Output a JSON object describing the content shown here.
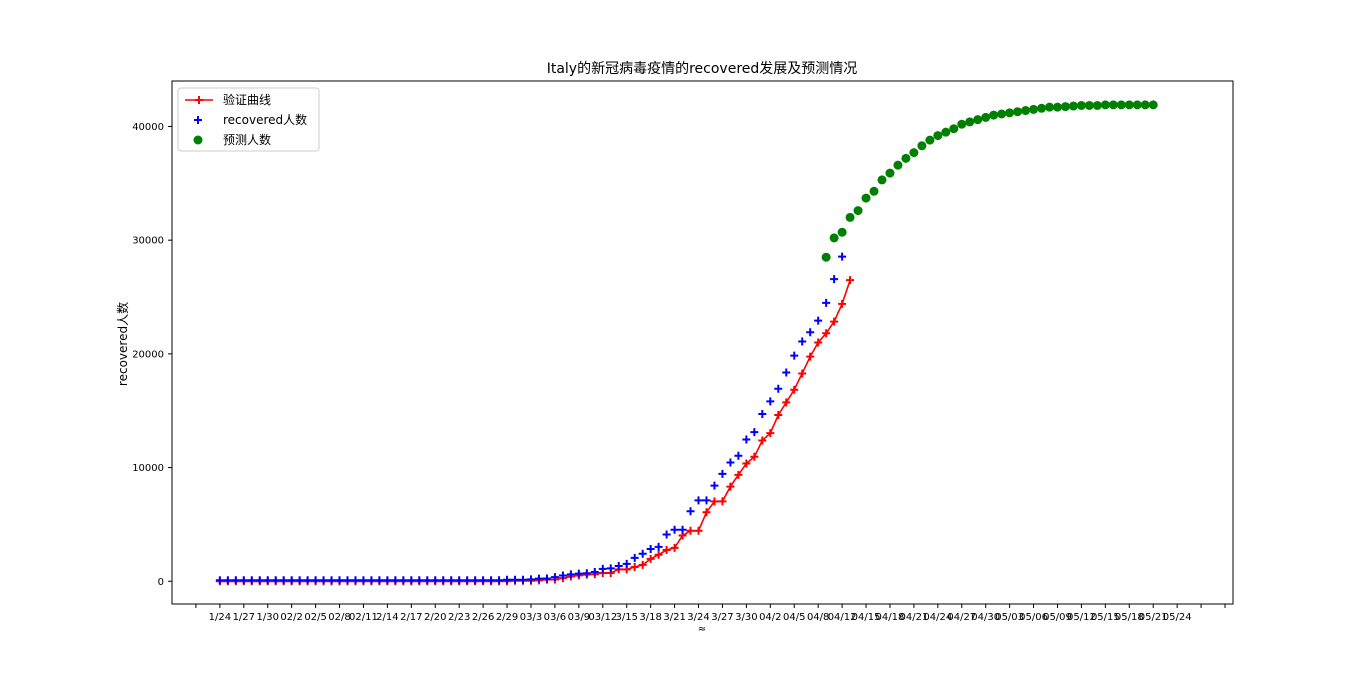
{
  "chart_data": {
    "type": "line",
    "title": "Italy的新冠病毒疫情的recovered发展及预测情况",
    "xlabel": "≈",
    "ylabel": "recovered人数",
    "ylim": [
      -2000,
      44000
    ],
    "yticks": [
      0,
      10000,
      20000,
      30000,
      40000
    ],
    "xticklabels": [
      "1/24",
      "1/27",
      "1/30",
      "02/2",
      "02/5",
      "02/8",
      "02/11",
      "2/14",
      "2/17",
      "2/20",
      "2/23",
      "2/26",
      "2/29",
      "03/3",
      "03/6",
      "03/9",
      "03/12",
      "3/15",
      "3/18",
      "3/21",
      "3/24",
      "3/27",
      "3/30",
      "04/2",
      "04/5",
      "04/8",
      "04/12",
      "04/15",
      "04/18",
      "04/21",
      "04/24",
      "04/27",
      "04/30",
      "05/03",
      "05/06",
      "05/09",
      "05/12",
      "05/15",
      "05/18",
      "05/21",
      "05/24"
    ],
    "grid": false,
    "legend_position": "top-left",
    "legend": [
      "验证曲线",
      "recovered人数",
      "预测人数"
    ],
    "colors": {
      "fit": "#ff0000",
      "actual": "#0000ff",
      "predict": "#008000"
    },
    "series": [
      {
        "name": "验证曲线",
        "marker": "plus",
        "style": "line",
        "x_start": 0,
        "values": [
          0,
          0,
          0,
          0,
          0,
          0,
          0,
          0,
          0,
          0,
          0,
          0,
          0,
          0,
          0,
          0,
          0,
          0,
          0,
          0,
          0,
          0,
          0,
          0,
          0,
          0,
          0,
          0,
          0,
          0,
          0,
          0,
          0,
          0,
          0,
          1,
          3,
          45,
          46,
          46,
          83,
          149,
          160,
          276,
          414,
          523,
          589,
          622,
          724,
          724,
          1045,
          1045,
          1258,
          1439,
          1966,
          2335,
          2749,
          2941,
          4025,
          4440,
          4440,
          6072,
          7024,
          7024,
          8326,
          9362,
          10361,
          10950,
          12384,
          13030,
          14620,
          15729,
          16847,
          18278,
          19758,
          20996,
          21815,
          22837,
          24392,
          26491
        ]
      },
      {
        "name": "recovered人数",
        "marker": "plus",
        "style": "scatter",
        "x_start": 0,
        "values": [
          0,
          0,
          0,
          0,
          0,
          0,
          0,
          0,
          0,
          0,
          0,
          0,
          0,
          0,
          0,
          0,
          0,
          0,
          0,
          0,
          0,
          0,
          0,
          0,
          0,
          0,
          0,
          0,
          0,
          0,
          0,
          0,
          0,
          1,
          2,
          3,
          45,
          46,
          46,
          83,
          149,
          160,
          276,
          414,
          523,
          589,
          622,
          724,
          1004,
          1045,
          1258,
          1439,
          1966,
          2335,
          2749,
          2941,
          4025,
          4440,
          4440,
          6072,
          7024,
          7024,
          8326,
          9362,
          10361,
          10950,
          12384,
          13030,
          14620,
          15729,
          16847,
          18278,
          19758,
          20996,
          21815,
          22837,
          24392,
          26491,
          28470
        ]
      },
      {
        "name": "预测人数",
        "marker": "circle",
        "style": "scatter",
        "x_start": 76,
        "values": [
          28500,
          30200,
          30700,
          32000,
          32600,
          33700,
          34300,
          35300,
          35900,
          36600,
          37200,
          37700,
          38300,
          38800,
          39200,
          39500,
          39800,
          40200,
          40400,
          40600,
          40800,
          41000,
          41100,
          41200,
          41300,
          41400,
          41500,
          41600,
          41700,
          41700,
          41750,
          41800,
          41850,
          41850,
          41850,
          41900,
          41900,
          41900,
          41900,
          41900,
          41900,
          41900
        ]
      }
    ]
  }
}
